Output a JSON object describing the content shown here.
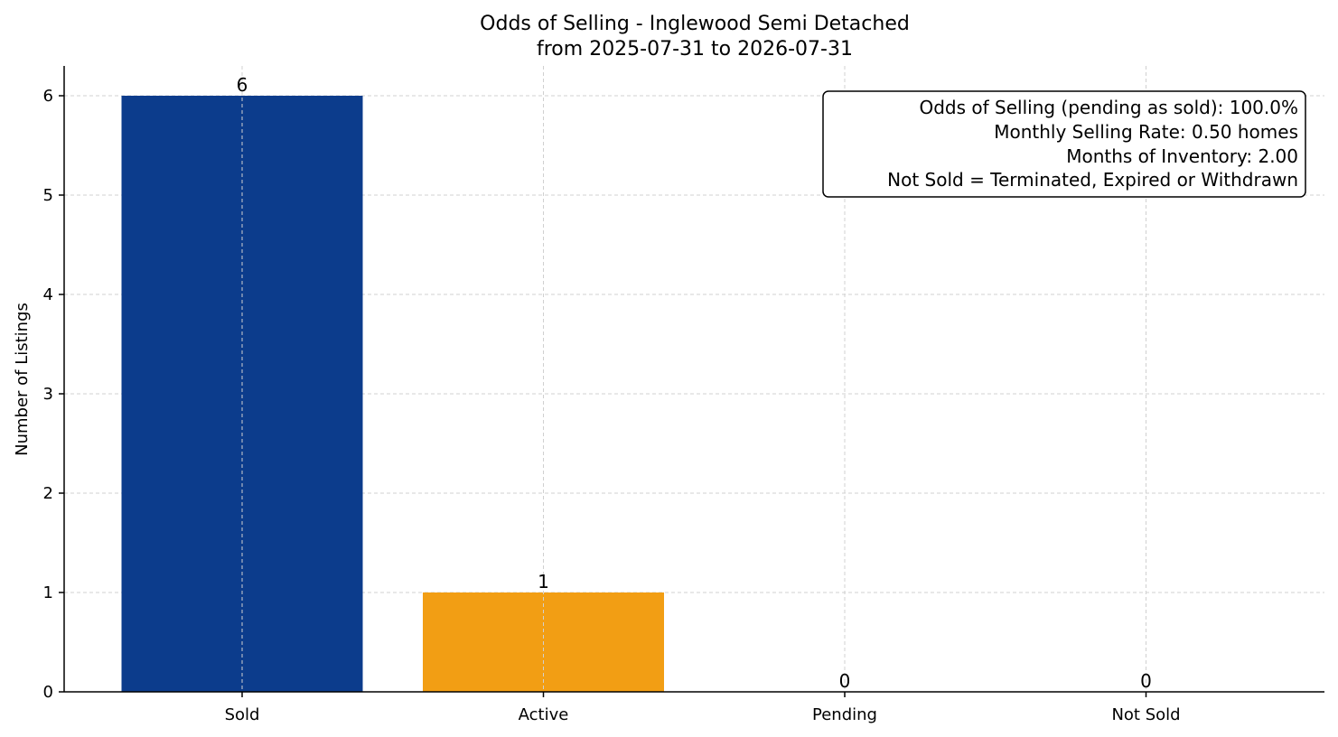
{
  "chart_data": {
    "type": "bar",
    "title": "Odds of Selling - Inglewood Semi Detached",
    "subtitle": "from 2025-07-31 to 2026-07-31",
    "xlabel": "",
    "ylabel": "Number of Listings",
    "categories": [
      "Sold",
      "Active",
      "Pending",
      "Not Sold"
    ],
    "values": [
      6,
      1,
      0,
      0
    ],
    "colors": [
      "#0c3c8c",
      "#f29e14",
      "#8a8a8a",
      "#8a8a8a"
    ],
    "ylim": [
      0,
      6.3
    ],
    "yticks": [
      0,
      1,
      2,
      3,
      4,
      5,
      6
    ],
    "grid": true,
    "info_box": {
      "position": "top-right",
      "lines": [
        "Odds of Selling (pending as sold): 100.0%",
        "Monthly Selling Rate: 0.50 homes",
        "Months of Inventory: 2.00",
        "Not Sold = Terminated, Expired or Withdrawn"
      ]
    }
  }
}
